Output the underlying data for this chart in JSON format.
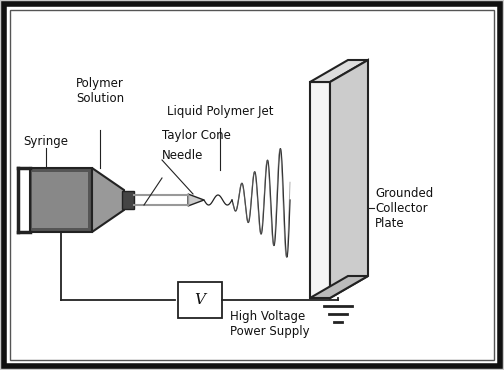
{
  "bg_color": "#c8c8c8",
  "inner_bg": "#ffffff",
  "line_color": "#222222",
  "text_color": "#111111",
  "gray_dark": "#333333",
  "gray_med": "#888888",
  "gray_light": "#bbbbbb",
  "labels": {
    "syringe": "Syringe",
    "polymer_solution": "Polymer\nSolution",
    "taylor_cone": "Taylor Cone",
    "needle": "Needle",
    "liquid_jet": "Liquid Polymer Jet",
    "grounded": "Grounded\nCollector\nPlate",
    "high_voltage": "High Voltage\nPower Supply",
    "v_symbol": "V"
  },
  "font_size": 8.5
}
